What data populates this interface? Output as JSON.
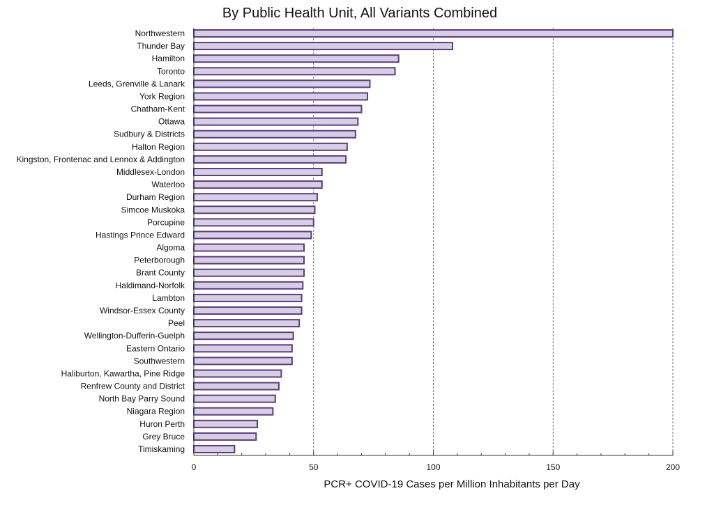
{
  "chart_data": {
    "type": "bar",
    "orientation": "horizontal",
    "title": "By Public Health Unit, All Variants Combined",
    "xlabel": "PCR+ COVID-19 Cases per Million Inhabitants per Day",
    "ylabel": "",
    "xlim": [
      0,
      200
    ],
    "xticks": [
      "0",
      "50",
      "100",
      "150",
      "200"
    ],
    "grid": "vertical dashed at major ticks",
    "colors": {
      "bar_fill": "#d9cce6",
      "bar_stroke": "#5b3f7a",
      "grid": "#555555"
    },
    "categories": [
      "Northwestern",
      "Thunder Bay",
      "Hamilton",
      "Toronto",
      "Leeds, Grenville & Lanark",
      "York Region",
      "Chatham-Kent",
      "Ottawa",
      "Sudbury & Districts",
      "Halton Region",
      "Kingston, Frontenac and Lennox & Addington",
      "Middlesex-London",
      "Waterloo",
      "Durham Region",
      "Simcoe Muskoka",
      "Porcupine",
      "Hastings Prince Edward",
      "Algoma",
      "Peterborough",
      "Brant County",
      "Haldimand-Norfolk",
      "Lambton",
      "Windsor-Essex County",
      "Peel",
      "Wellington-Dufferin-Guelph",
      "Eastern Ontario",
      "Southwestern",
      "Haliburton, Kawartha, Pine Ridge",
      "Renfrew County and District",
      "North Bay Parry Sound",
      "Niagara Region",
      "Huron Perth",
      "Grey Bruce",
      "Timiskaming"
    ],
    "values": [
      200,
      108,
      85.5,
      84,
      73.5,
      72.5,
      70,
      68.5,
      67.5,
      64,
      63.5,
      53.5,
      53.5,
      51.5,
      50.5,
      50,
      49,
      46,
      46,
      46,
      45.5,
      45,
      45,
      44,
      41.5,
      41,
      41,
      36.5,
      35.5,
      34,
      33,
      26.5,
      26,
      17
    ]
  }
}
